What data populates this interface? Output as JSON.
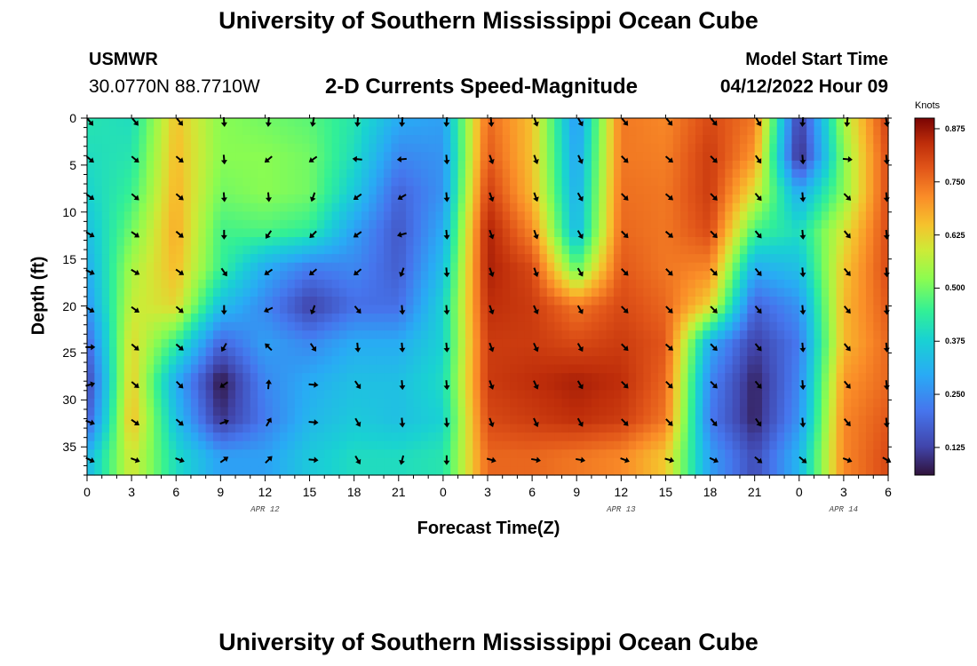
{
  "page": {
    "title": "University of Southern Mississippi Ocean Cube",
    "title_repeat": "University of Southern Mississippi Ocean Cube",
    "station_id": "USMWR",
    "station_coords": "30.0770N  88.7710W",
    "subtitle": "2-D Currents Speed-Magnitude",
    "model_start_label": "Model Start Time",
    "model_start_value": "04/12/2022 Hour 09"
  },
  "colors": {
    "arrow": "#000000",
    "frame": "#000000",
    "background": "#ffffff"
  },
  "chart_data": {
    "type": "heatmap",
    "title": "2-D Currents Speed-Magnitude",
    "xlabel": "Forecast Time(Z)",
    "ylabel": "Depth (ft)",
    "x_tick_labels": [
      "0",
      "3",
      "6",
      "9",
      "12",
      "15",
      "18",
      "21",
      "0",
      "3",
      "6",
      "9",
      "12",
      "15",
      "18",
      "21",
      "0",
      "3",
      "6"
    ],
    "x_range_hours": [
      0,
      54
    ],
    "date_labels": [
      {
        "label": "APR 12",
        "hour": 12
      },
      {
        "label": "APR 13",
        "hour": 36
      },
      {
        "label": "APR 14",
        "hour": 51
      }
    ],
    "y_ticks": [
      0,
      5,
      10,
      15,
      20,
      25,
      30,
      35
    ],
    "ylim": [
      0,
      38
    ],
    "colorbar": {
      "unit": "Knots",
      "ticks": [
        "0.875",
        "0.750",
        "0.625",
        "0.500",
        "0.375",
        "0.250",
        "0.125"
      ],
      "tick_values": [
        0.875,
        0.75,
        0.625,
        0.5,
        0.375,
        0.25,
        0.125
      ],
      "range": [
        0.06,
        0.9
      ],
      "colormap": "turbo"
    },
    "depth_samples_ft": [
      0,
      4,
      8,
      12,
      16,
      20,
      24,
      28,
      32,
      36
    ],
    "hour_samples": [
      0,
      3,
      6,
      9,
      12,
      15,
      18,
      21,
      24,
      27,
      30,
      33,
      36,
      39,
      42,
      45,
      48,
      51,
      54
    ],
    "speed_knots": [
      [
        0.42,
        0.4,
        0.65,
        0.52,
        0.5,
        0.48,
        0.42,
        0.3,
        0.28,
        0.76,
        0.65,
        0.26,
        0.74,
        0.72,
        0.8,
        0.74,
        0.11,
        0.55,
        0.82
      ],
      [
        0.4,
        0.42,
        0.66,
        0.52,
        0.52,
        0.5,
        0.4,
        0.24,
        0.26,
        0.78,
        0.65,
        0.28,
        0.74,
        0.73,
        0.82,
        0.7,
        0.08,
        0.52,
        0.8
      ],
      [
        0.38,
        0.45,
        0.67,
        0.5,
        0.52,
        0.5,
        0.36,
        0.18,
        0.26,
        0.82,
        0.66,
        0.3,
        0.75,
        0.74,
        0.82,
        0.6,
        0.3,
        0.52,
        0.8
      ],
      [
        0.34,
        0.5,
        0.68,
        0.46,
        0.47,
        0.44,
        0.28,
        0.16,
        0.3,
        0.86,
        0.72,
        0.32,
        0.76,
        0.74,
        0.8,
        0.46,
        0.4,
        0.6,
        0.8
      ],
      [
        0.3,
        0.55,
        0.66,
        0.45,
        0.3,
        0.22,
        0.24,
        0.17,
        0.34,
        0.86,
        0.8,
        0.48,
        0.78,
        0.74,
        0.72,
        0.3,
        0.34,
        0.64,
        0.8
      ],
      [
        0.26,
        0.58,
        0.62,
        0.34,
        0.24,
        0.12,
        0.2,
        0.2,
        0.38,
        0.84,
        0.82,
        0.74,
        0.8,
        0.76,
        0.62,
        0.18,
        0.26,
        0.66,
        0.78
      ],
      [
        0.18,
        0.62,
        0.44,
        0.18,
        0.28,
        0.24,
        0.3,
        0.3,
        0.38,
        0.82,
        0.82,
        0.8,
        0.82,
        0.78,
        0.3,
        0.12,
        0.22,
        0.66,
        0.76
      ],
      [
        0.12,
        0.64,
        0.3,
        0.06,
        0.24,
        0.3,
        0.34,
        0.34,
        0.4,
        0.82,
        0.84,
        0.86,
        0.84,
        0.76,
        0.24,
        0.08,
        0.24,
        0.7,
        0.76
      ],
      [
        0.16,
        0.66,
        0.34,
        0.1,
        0.22,
        0.32,
        0.36,
        0.34,
        0.38,
        0.8,
        0.82,
        0.84,
        0.82,
        0.74,
        0.22,
        0.08,
        0.26,
        0.72,
        0.78
      ],
      [
        0.32,
        0.6,
        0.4,
        0.28,
        0.28,
        0.36,
        0.4,
        0.4,
        0.42,
        0.76,
        0.76,
        0.74,
        0.72,
        0.64,
        0.28,
        0.14,
        0.32,
        0.72,
        0.8
      ]
    ],
    "direction_deg": [
      [
        140,
        140,
        140,
        175,
        185,
        190,
        185,
        185,
        185,
        175,
        160,
        150,
        140,
        140,
        140,
        150,
        185,
        185,
        170
      ],
      [
        130,
        130,
        130,
        175,
        230,
        235,
        275,
        265,
        175,
        160,
        160,
        155,
        135,
        130,
        135,
        145,
        175,
        95,
        175
      ],
      [
        125,
        130,
        130,
        175,
        175,
        200,
        235,
        240,
        175,
        160,
        160,
        150,
        135,
        130,
        135,
        140,
        175,
        135,
        175
      ],
      [
        120,
        125,
        130,
        180,
        215,
        225,
        235,
        255,
        175,
        160,
        160,
        150,
        135,
        130,
        135,
        140,
        175,
        140,
        175
      ],
      [
        115,
        120,
        125,
        145,
        235,
        230,
        230,
        200,
        175,
        160,
        160,
        150,
        135,
        135,
        135,
        140,
        175,
        140,
        175
      ],
      [
        120,
        125,
        130,
        180,
        245,
        200,
        140,
        175,
        175,
        160,
        155,
        150,
        135,
        135,
        135,
        140,
        175,
        140,
        175
      ],
      [
        90,
        130,
        130,
        210,
        315,
        145,
        175,
        175,
        175,
        160,
        155,
        150,
        135,
        130,
        135,
        140,
        175,
        140,
        175
      ],
      [
        75,
        130,
        135,
        235,
        5,
        95,
        145,
        175,
        175,
        160,
        155,
        150,
        135,
        135,
        135,
        140,
        175,
        140,
        175
      ],
      [
        110,
        125,
        130,
        70,
        30,
        95,
        150,
        175,
        175,
        160,
        155,
        150,
        135,
        135,
        140,
        145,
        175,
        140,
        175
      ],
      [
        115,
        110,
        110,
        55,
        45,
        95,
        150,
        195,
        180,
        105,
        100,
        100,
        110,
        105,
        115,
        130,
        130,
        110,
        120
      ]
    ]
  }
}
